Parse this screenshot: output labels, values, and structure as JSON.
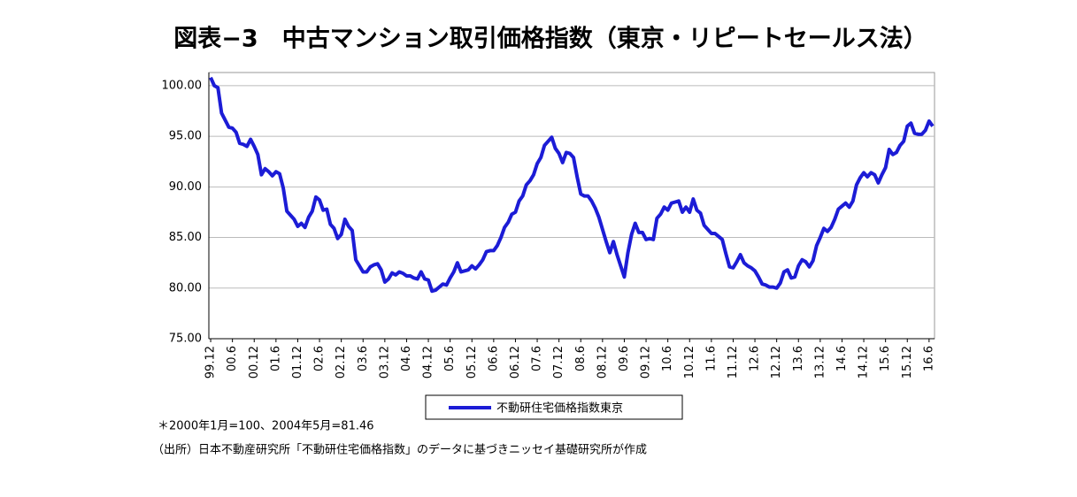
{
  "chart_data": {
    "type": "line",
    "title": "図表−3　中古マンション取引価格指数（東京・リピートセールス法）",
    "notes": [
      "＊2000年1月=100、2004年5月=81.46",
      "（出所）日本不動産研究所「不動研住宅価格指数」のデータに基づきニッセイ基礎研究所が作成"
    ],
    "categories": [
      "99.12",
      null,
      null,
      null,
      null,
      null,
      "00.6",
      null,
      null,
      null,
      null,
      null,
      "00.12",
      null,
      null,
      null,
      null,
      null,
      "01.6",
      null,
      null,
      null,
      null,
      null,
      "01.12",
      null,
      null,
      null,
      null,
      null,
      "02.6",
      null,
      null,
      null,
      null,
      null,
      "02.12",
      null,
      null,
      null,
      null,
      null,
      "03.6",
      null,
      null,
      null,
      null,
      null,
      "03.12",
      null,
      null,
      null,
      null,
      null,
      "04.6",
      null,
      null,
      null,
      null,
      null,
      "04.12",
      null,
      null,
      null,
      null,
      null,
      "05.6",
      null,
      null,
      null,
      null,
      null,
      "05.12",
      null,
      null,
      null,
      null,
      null,
      "06.6",
      null,
      null,
      null,
      null,
      null,
      "06.12",
      null,
      null,
      null,
      null,
      null,
      "07.6",
      null,
      null,
      null,
      null,
      null,
      "07.12",
      null,
      null,
      null,
      null,
      null,
      "08.6",
      null,
      null,
      null,
      null,
      null,
      "08.12",
      null,
      null,
      null,
      null,
      null,
      "09.6",
      null,
      null,
      null,
      null,
      null,
      "09.12",
      null,
      null,
      null,
      null,
      null,
      "10.6",
      null,
      null,
      null,
      null,
      null,
      "10.12",
      null,
      null,
      null,
      null,
      null,
      "11.6",
      null,
      null,
      null,
      null,
      null,
      "11.12",
      null,
      null,
      null,
      null,
      null,
      "12.6",
      null,
      null,
      null,
      null,
      null,
      "12.12",
      null,
      null,
      null,
      null,
      null,
      "13.6",
      null,
      null,
      null,
      null,
      null,
      "13.12",
      null,
      null,
      null,
      null,
      null,
      "14.6",
      null,
      null,
      null,
      null,
      null,
      "14.12",
      null,
      null,
      null,
      null,
      null,
      "15.6",
      null,
      null,
      null,
      null,
      null,
      "15.12",
      null,
      null,
      null,
      null,
      null,
      "16.6",
      null
    ],
    "series": [
      {
        "name": "不動研住宅価格指数東京",
        "color": "#1c1cd6",
        "values": [
          100.8,
          100.0,
          99.8,
          97.3,
          96.6,
          95.9,
          95.8,
          95.4,
          94.3,
          94.2,
          94.0,
          94.7,
          94.0,
          93.2,
          91.2,
          91.8,
          91.5,
          91.1,
          91.5,
          91.3,
          89.9,
          87.6,
          87.2,
          86.8,
          86.1,
          86.4,
          86.0,
          87.0,
          87.6,
          89.0,
          88.7,
          87.7,
          87.8,
          86.3,
          85.9,
          84.9,
          85.3,
          86.8,
          86.1,
          85.7,
          82.8,
          82.2,
          81.6,
          81.6,
          82.1,
          82.3,
          82.4,
          81.8,
          80.6,
          80.9,
          81.5,
          81.3,
          81.6,
          81.46,
          81.2,
          81.2,
          81.0,
          80.9,
          81.6,
          80.9,
          80.8,
          79.7,
          79.8,
          80.1,
          80.4,
          80.3,
          81.0,
          81.6,
          82.5,
          81.6,
          81.7,
          81.8,
          82.2,
          81.9,
          82.3,
          82.8,
          83.6,
          83.7,
          83.7,
          84.2,
          85.0,
          86.0,
          86.5,
          87.3,
          87.5,
          88.6,
          89.1,
          90.2,
          90.6,
          91.2,
          92.3,
          92.9,
          94.1,
          94.5,
          94.9,
          93.8,
          93.3,
          92.4,
          93.4,
          93.3,
          92.9,
          91.0,
          89.3,
          89.1,
          89.1,
          88.6,
          87.9,
          87.0,
          85.8,
          84.6,
          83.5,
          84.6,
          83.3,
          82.2,
          81.1,
          83.5,
          85.3,
          86.4,
          85.5,
          85.5,
          84.8,
          84.9,
          84.8,
          86.9,
          87.3,
          88.0,
          87.7,
          88.4,
          88.5,
          88.6,
          87.5,
          88.0,
          87.5,
          88.8,
          87.7,
          87.4,
          86.2,
          85.8,
          85.4,
          85.4,
          85.1,
          84.8,
          83.4,
          82.1,
          82.0,
          82.6,
          83.3,
          82.5,
          82.2,
          82.0,
          81.7,
          81.1,
          80.4,
          80.3,
          80.1,
          80.1,
          80.0,
          80.5,
          81.6,
          81.8,
          81.0,
          81.1,
          82.2,
          82.8,
          82.6,
          82.1,
          82.7,
          84.2,
          85.0,
          85.9,
          85.6,
          86.0,
          86.8,
          87.8,
          88.1,
          88.4,
          88.0,
          88.6,
          90.2,
          90.9,
          91.4,
          91.0,
          91.4,
          91.2,
          90.4,
          91.2,
          91.9,
          93.7,
          93.2,
          93.4,
          94.1,
          94.5,
          96.0,
          96.3,
          95.3,
          95.2,
          95.2,
          95.6,
          96.5,
          96.0
        ]
      }
    ],
    "ylim": [
      75,
      101.3
    ],
    "yticks": [
      {
        "value": 75,
        "label": "75.00"
      },
      {
        "value": 80,
        "label": "80.00"
      },
      {
        "value": 85,
        "label": "85.00"
      },
      {
        "value": 90,
        "label": "90.00"
      },
      {
        "value": 95,
        "label": "95.00"
      },
      {
        "value": 100,
        "label": "100.00"
      }
    ],
    "grid": true
  }
}
